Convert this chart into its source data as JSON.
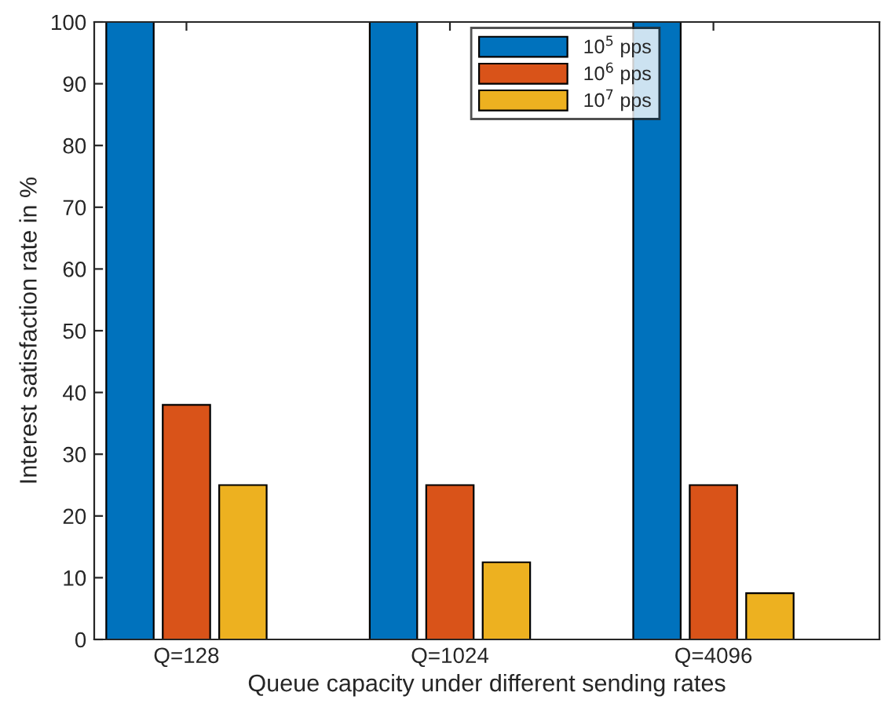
{
  "chart_data": {
    "type": "bar",
    "xlabel": "Queue capacity under different sending rates",
    "ylabel": "Interest satisfaction rate in %",
    "categories": [
      "Q=128",
      "Q=1024",
      "Q=4096"
    ],
    "series": [
      {
        "name": "10$^{5}$ pps",
        "color": "#0072bd",
        "values": [
          100,
          100,
          100
        ]
      },
      {
        "name": "10$^{6}$ pps",
        "color": "#d95319",
        "values": [
          38,
          25,
          25
        ]
      },
      {
        "name": "10$^{7}$ pps",
        "color": "#edb120",
        "values": [
          25,
          12.5,
          7.5
        ]
      }
    ],
    "ylim": [
      0,
      100
    ],
    "yticks": [
      0,
      10,
      20,
      30,
      40,
      50,
      60,
      70,
      80,
      90,
      100
    ],
    "grid": false,
    "legend": "top right"
  }
}
